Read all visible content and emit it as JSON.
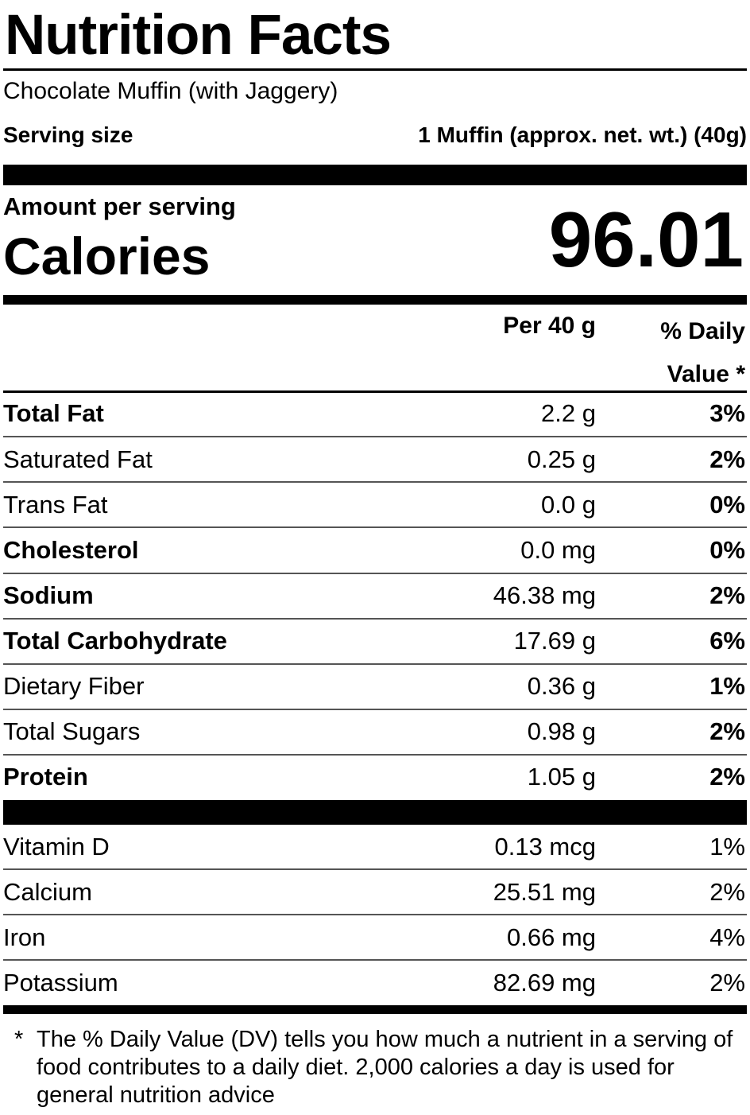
{
  "header": {
    "title": "Nutrition Facts",
    "food_name": "Chocolate Muffin (with Jaggery)",
    "serving_label": "Serving size",
    "serving_value": "1 Muffin (approx. net. wt.) (40g)"
  },
  "calories": {
    "amount_per": "Amount per serving",
    "label": "Calories",
    "value": "96.01"
  },
  "columns": {
    "per": "Per 40 g",
    "dv_line1": "% Daily",
    "dv_line2": "Value *"
  },
  "nutrients": [
    {
      "name": "Total Fat",
      "amount": "2.2 g",
      "dv": "3%"
    },
    {
      "name": "Saturated Fat",
      "amount": "0.25 g",
      "dv": "2%"
    },
    {
      "name": "Trans Fat",
      "amount": "0.0 g",
      "dv": "0%"
    },
    {
      "name": "Cholesterol",
      "amount": "0.0 mg",
      "dv": "0%"
    },
    {
      "name": "Sodium",
      "amount": "46.38 mg",
      "dv": "2%"
    },
    {
      "name": "Total Carbohydrate",
      "amount": "17.69 g",
      "dv": "6%"
    },
    {
      "name": "Dietary Fiber",
      "amount": "0.36 g",
      "dv": "1%"
    },
    {
      "name": "Total Sugars",
      "amount": "0.98 g",
      "dv": "2%"
    },
    {
      "name": "Protein",
      "amount": "1.05 g",
      "dv": "2%"
    }
  ],
  "vitamins": [
    {
      "name": "Vitamin D",
      "amount": "0.13 mcg",
      "dv": "1%"
    },
    {
      "name": "Calcium",
      "amount": "25.51 mg",
      "dv": "2%"
    },
    {
      "name": "Iron",
      "amount": "0.66 mg",
      "dv": "4%"
    },
    {
      "name": "Potassium",
      "amount": "82.69 mg",
      "dv": "2%"
    }
  ],
  "footnote": {
    "star": "*",
    "text": "The % Daily Value (DV) tells you how much a nutrient in a serving of food contributes to a daily diet. 2,000 calories a day is used for general nutrition advice"
  }
}
